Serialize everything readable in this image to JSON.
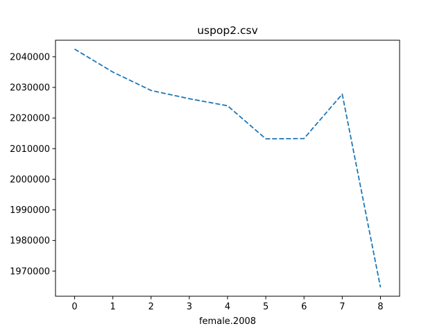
{
  "chart_data": {
    "type": "line",
    "title": "uspop2.csv",
    "xlabel": "female.2008",
    "ylabel": "",
    "x": [
      0,
      1,
      2,
      3,
      4,
      5,
      6,
      7,
      8
    ],
    "series": [
      {
        "values": [
          2042500,
          2035000,
          2029000,
          2026300,
          2024000,
          2013200,
          2013300,
          2027800,
          1964700
        ],
        "color": "#1f77b4",
        "line_style": "dashed"
      }
    ],
    "xlim": [
      -0.5,
      8.5
    ],
    "ylim": [
      1961800,
      2045400
    ],
    "xticks": [
      0,
      1,
      2,
      3,
      4,
      5,
      6,
      7,
      8
    ],
    "xtick_labels": [
      "0",
      "1",
      "2",
      "3",
      "4",
      "5",
      "6",
      "7",
      "8"
    ],
    "yticks": [
      1970000,
      1980000,
      1990000,
      2000000,
      2010000,
      2020000,
      2030000,
      2040000
    ],
    "ytick_labels": [
      "1970000",
      "1980000",
      "1990000",
      "2000000",
      "2010000",
      "2020000",
      "2030000",
      "2040000"
    ],
    "grid": false,
    "legend": false
  }
}
